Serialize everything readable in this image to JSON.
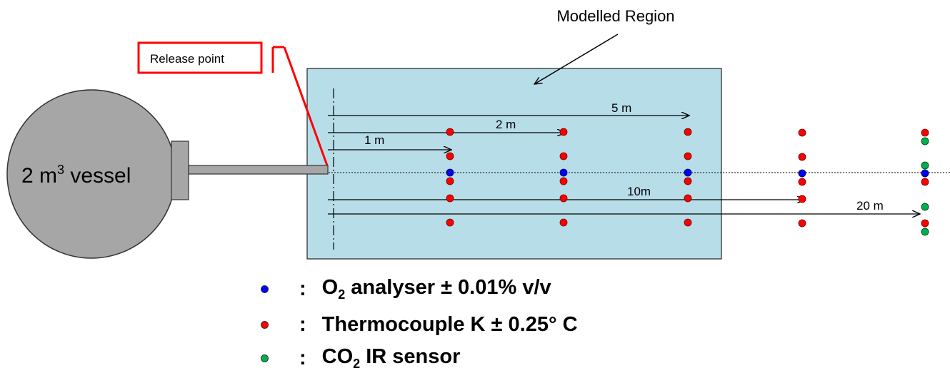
{
  "title": "Modelled Region",
  "release_label": "Release point",
  "vessel": {
    "prefix": "2 m",
    "sup": "3",
    "suffix": " vessel"
  },
  "distances": [
    "1 m",
    "2 m",
    "5 m",
    "10m",
    "20 m"
  ],
  "legend": [
    {
      "color": "#0000ff",
      "pre": "O",
      "sub": "2",
      "post": " analyser ± 0.01% v/v"
    },
    {
      "color": "#ff0000",
      "pre": "Thermocouple K ± 0.25°  C",
      "sub": "",
      "post": ""
    },
    {
      "color": "#00b050",
      "pre": "CO",
      "sub": "2",
      "post": " IR sensor"
    }
  ],
  "colors": {
    "region_fill": "#b7dee8",
    "vessel_fill": "#a6a6a6",
    "release_box": "#ff0000"
  }
}
